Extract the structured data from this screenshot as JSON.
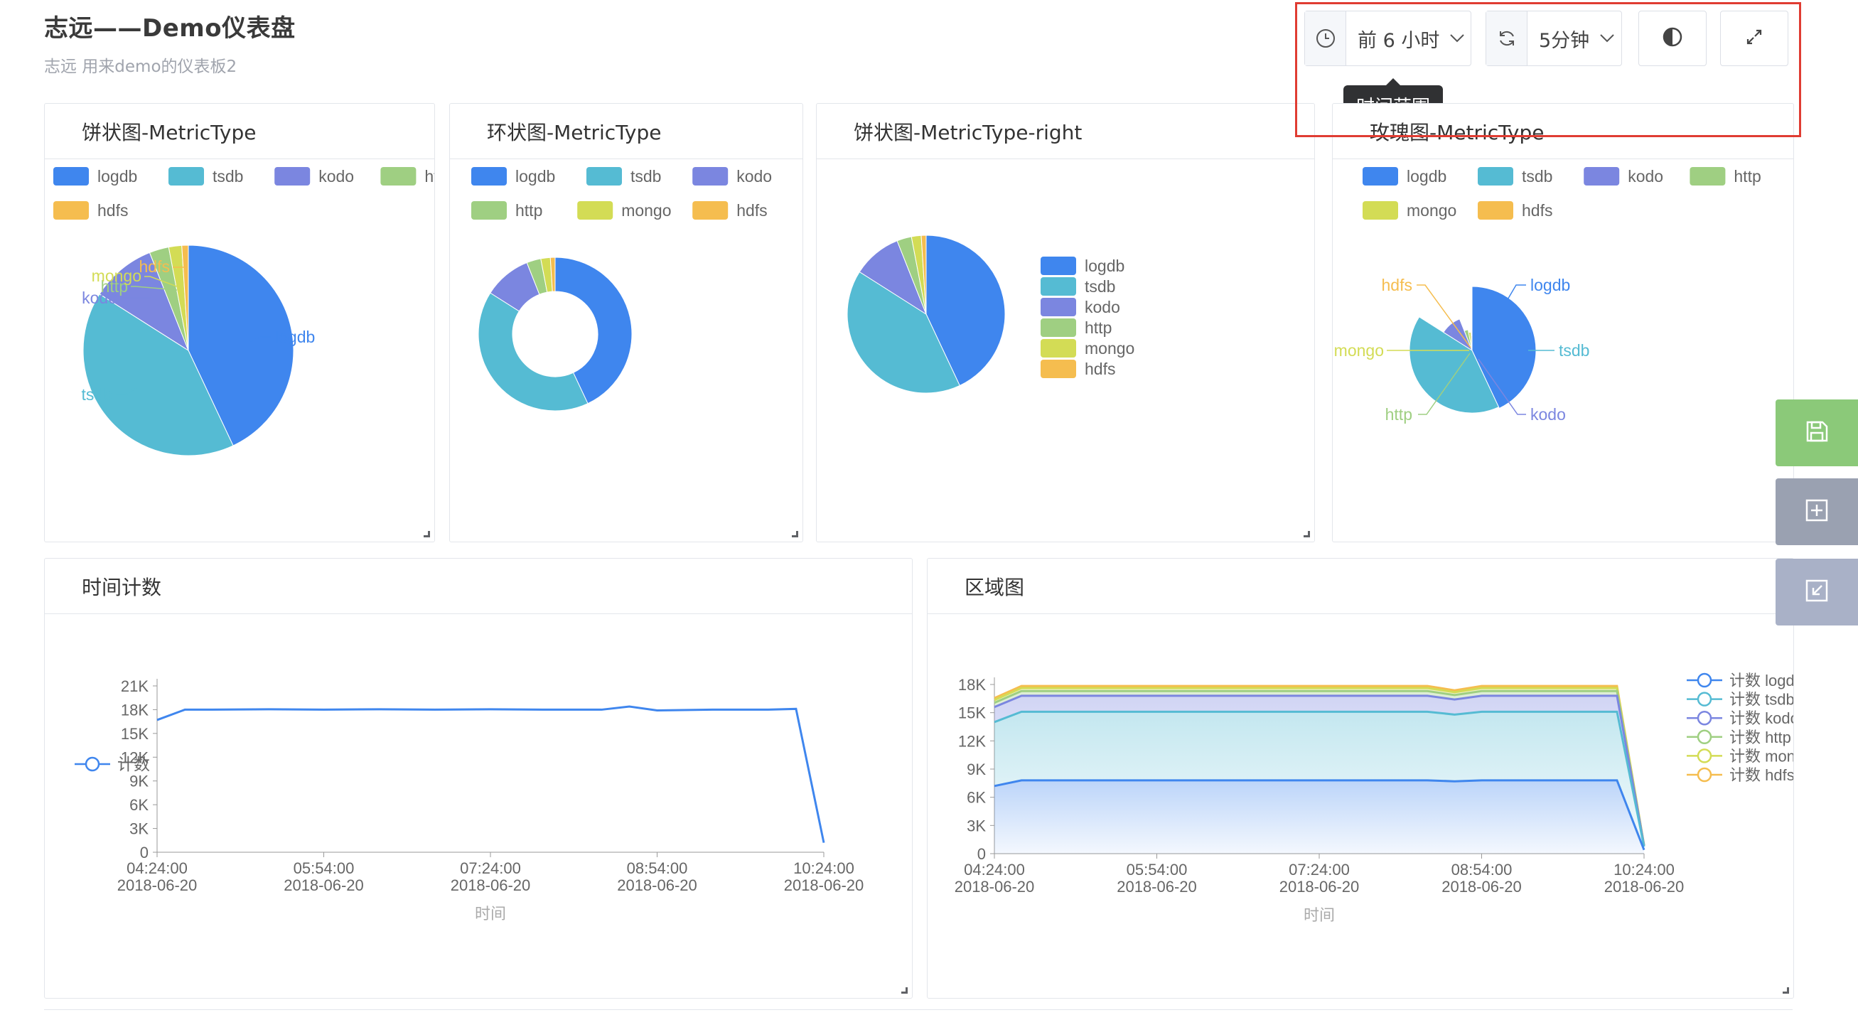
{
  "header": {
    "title": "志远——Demo仪表盘",
    "subtitle": "志远 用来demo的仪表板2"
  },
  "toolbar": {
    "time_range_label": "前 6 小时",
    "refresh_interval_label": "5分钟",
    "tooltip": "时间范围",
    "icons": {
      "time": "clock-icon",
      "refresh": "refresh-icon",
      "theme": "contrast-icon",
      "fullscreen": "expand-icon"
    }
  },
  "colors": {
    "logdb": "#3f86ee",
    "tsdb": "#55bbd3",
    "kodo": "#7b86e0",
    "http": "#9fcf82",
    "mongo": "#d3dc55",
    "hdfs": "#f5bd4f",
    "highlight": "#e03c32",
    "side_save": "#8bc979",
    "side_add": "#9aa1b1",
    "side_import": "#a9b1c7"
  },
  "panels": [
    {
      "title": "饼状图-MetricType",
      "legend": [
        "logdb",
        "tsdb",
        "kodo",
        "http",
        "mongo",
        "hdfs"
      ],
      "labels": [
        "hdfs",
        "mongo",
        "http",
        "kodo",
        "logdb",
        "tsdb"
      ]
    },
    {
      "title": "环状图-MetricType",
      "legend": [
        "logdb",
        "tsdb",
        "kodo",
        "http",
        "mongo",
        "hdfs"
      ]
    },
    {
      "title": "饼状图-MetricType-right",
      "legend": [
        "logdb",
        "tsdb",
        "kodo",
        "http",
        "mongo",
        "hdfs"
      ]
    },
    {
      "title": "玫瑰图-MetricType",
      "legend": [
        "logdb",
        "tsdb",
        "kodo",
        "http",
        "mongo",
        "hdfs"
      ],
      "labels": [
        "hdfs",
        "logdb",
        "mongo",
        "tsdb",
        "http",
        "kodo"
      ]
    },
    {
      "title": "时间计数",
      "legend": [
        "计数"
      ],
      "xlabel": "时间"
    },
    {
      "title": "区域图",
      "legend": [
        "计数 logdb",
        "计数 tsdb",
        "计数 kodo",
        "计数 http",
        "计数 mongo",
        "计数 hdfs"
      ],
      "xlabel": "时间"
    }
  ],
  "side_buttons": [
    "save-icon",
    "add-icon",
    "import-icon"
  ],
  "chart_data": [
    {
      "type": "pie",
      "title": "饼状图-MetricType",
      "categories": [
        "logdb",
        "tsdb",
        "kodo",
        "http",
        "mongo",
        "hdfs"
      ],
      "values": [
        43,
        41,
        10,
        3,
        2,
        1
      ],
      "legend": "top"
    },
    {
      "type": "pie",
      "variant": "donut",
      "title": "环状图-MetricType",
      "categories": [
        "logdb",
        "tsdb",
        "kodo",
        "http",
        "mongo",
        "hdfs"
      ],
      "values": [
        43,
        41,
        10,
        3,
        2,
        1
      ],
      "legend": "top"
    },
    {
      "type": "pie",
      "title": "饼状图-MetricType-right",
      "categories": [
        "logdb",
        "tsdb",
        "kodo",
        "http",
        "mongo",
        "hdfs"
      ],
      "values": [
        43,
        41,
        10,
        3,
        2,
        1
      ],
      "legend": "right"
    },
    {
      "type": "pie",
      "variant": "rose",
      "title": "玫瑰图-MetricType",
      "categories": [
        "logdb",
        "tsdb",
        "kodo",
        "http",
        "mongo",
        "hdfs"
      ],
      "values": [
        43,
        41,
        10,
        3,
        2,
        1
      ],
      "legend": "top"
    },
    {
      "type": "line",
      "title": "时间计数",
      "xlabel": "时间",
      "ylabel": "",
      "x_ticks": [
        "04:24:00\n2018-06-20",
        "05:54:00\n2018-06-20",
        "07:24:00\n2018-06-20",
        "08:54:00\n2018-06-20",
        "10:24:00\n2018-06-20"
      ],
      "y_ticks": [
        "0",
        "3K",
        "6K",
        "9K",
        "12K",
        "15K",
        "18K",
        "21K"
      ],
      "ylim": [
        0,
        21000
      ],
      "series": [
        {
          "name": "计数",
          "x": [
            "2018-06-20 04:24",
            "2018-06-20 04:39",
            "2018-06-20 04:54",
            "2018-06-20 05:24",
            "2018-06-20 05:54",
            "2018-06-20 06:24",
            "2018-06-20 06:54",
            "2018-06-20 07:24",
            "2018-06-20 07:54",
            "2018-06-20 08:24",
            "2018-06-20 08:39",
            "2018-06-20 08:54",
            "2018-06-20 09:24",
            "2018-06-20 09:54",
            "2018-06-20 10:09",
            "2018-06-20 10:24"
          ],
          "values": [
            16700,
            18000,
            18000,
            18050,
            18000,
            18050,
            18000,
            18050,
            18000,
            18000,
            18400,
            17900,
            18000,
            18000,
            18100,
            1200
          ]
        }
      ],
      "legend": "left"
    },
    {
      "type": "area",
      "stacked": true,
      "title": "区域图",
      "xlabel": "时间",
      "ylabel": "",
      "x_ticks": [
        "04:24:00\n2018-06-20",
        "05:54:00\n2018-06-20",
        "07:24:00\n2018-06-20",
        "08:54:00\n2018-06-20",
        "10:24:00\n2018-06-20"
      ],
      "y_ticks": [
        "0",
        "3K",
        "6K",
        "9K",
        "12K",
        "15K",
        "18K"
      ],
      "ylim": [
        0,
        18000
      ],
      "x": [
        "2018-06-20 04:24",
        "2018-06-20 04:39",
        "2018-06-20 04:54",
        "2018-06-20 05:24",
        "2018-06-20 05:54",
        "2018-06-20 06:24",
        "2018-06-20 06:54",
        "2018-06-20 07:24",
        "2018-06-20 07:54",
        "2018-06-20 08:24",
        "2018-06-20 08:39",
        "2018-06-20 08:54",
        "2018-06-20 09:24",
        "2018-06-20 09:54",
        "2018-06-20 10:09",
        "2018-06-20 10:24"
      ],
      "series": [
        {
          "name": "计数 logdb",
          "values": [
            7200,
            7800,
            7800,
            7800,
            7800,
            7800,
            7800,
            7800,
            7800,
            7800,
            7700,
            7800,
            7800,
            7800,
            7800,
            400
          ]
        },
        {
          "name": "计数 tsdb",
          "values": [
            6800,
            7300,
            7300,
            7300,
            7300,
            7300,
            7300,
            7300,
            7300,
            7300,
            7100,
            7300,
            7300,
            7300,
            7300,
            350
          ]
        },
        {
          "name": "计数 kodo",
          "values": [
            1600,
            1700,
            1700,
            1700,
            1700,
            1700,
            1700,
            1700,
            1700,
            1700,
            1600,
            1700,
            1700,
            1700,
            1700,
            100
          ]
        },
        {
          "name": "计数 http",
          "values": [
            450,
            500,
            500,
            500,
            500,
            500,
            500,
            500,
            500,
            500,
            480,
            500,
            500,
            500,
            500,
            30
          ]
        },
        {
          "name": "计数 mongo",
          "values": [
            300,
            320,
            320,
            320,
            320,
            320,
            320,
            320,
            320,
            320,
            300,
            320,
            320,
            320,
            320,
            20
          ]
        },
        {
          "name": "计数 hdfs",
          "values": [
            200,
            220,
            220,
            220,
            220,
            220,
            220,
            220,
            220,
            220,
            200,
            220,
            220,
            220,
            220,
            15
          ]
        }
      ],
      "legend": "right"
    }
  ]
}
